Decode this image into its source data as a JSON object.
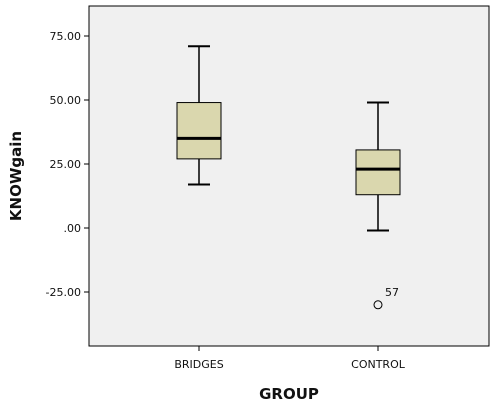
{
  "chart_data": {
    "type": "boxplot",
    "title": "",
    "xlabel": "GROUP",
    "ylabel": "KNOWgain",
    "ylim": [
      -40,
      82
    ],
    "yticks": [
      {
        "value": 75,
        "label": "75.00"
      },
      {
        "value": 50,
        "label": "50.00"
      },
      {
        "value": 25,
        "label": "25.00"
      },
      {
        "value": 0,
        "label": ".00"
      },
      {
        "value": -25,
        "label": "-25.00"
      }
    ],
    "categories": [
      "BRIDGES",
      "CONTROL"
    ],
    "boxes": [
      {
        "category": "BRIDGES",
        "whisker_low": 17,
        "q1": 27,
        "median": 35,
        "q3": 49,
        "whisker_high": 71,
        "outliers": []
      },
      {
        "category": "CONTROL",
        "whisker_low": -1,
        "q1": 13,
        "median": 23,
        "q3": 30.5,
        "whisker_high": 49,
        "outliers": [
          {
            "value": -30,
            "label": "57"
          }
        ]
      }
    ],
    "grid": false,
    "legend": "none",
    "colors": {
      "plot_background": "#f0f0f0",
      "box_fill": "#dad7ae",
      "stroke": "#000000"
    }
  }
}
